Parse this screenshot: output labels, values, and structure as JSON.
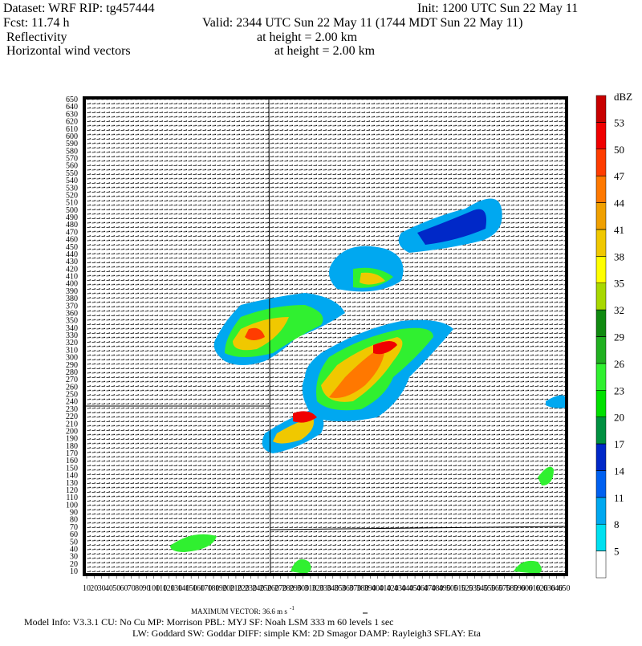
{
  "header": {
    "dataset": "Dataset: WRF  RIP: tg457444",
    "init": "Init: 1200 UTC Sun 22 May 11",
    "fcst": "Fcst:   11.74 h",
    "valid": "Valid: 2344 UTC Sun 22 May 11 (1744 MDT Sun 22 May 11)",
    "field1": "Reflectivity",
    "field1_height": "at height =  2.00 km",
    "field2": "Horizontal wind vectors",
    "field2_height": "at height =  2.00 km"
  },
  "plot": {
    "xlim": [
      10,
      650
    ],
    "ylim": [
      10,
      650
    ],
    "xticks": [
      10,
      20,
      30,
      40,
      50,
      60,
      70,
      80,
      90,
      100,
      110,
      120,
      130,
      140,
      150,
      160,
      170,
      180,
      190,
      200,
      210,
      220,
      230,
      240,
      250,
      260,
      270,
      280,
      290,
      300,
      310,
      320,
      330,
      340,
      350,
      360,
      370,
      380,
      390,
      400,
      410,
      420,
      430,
      440,
      450,
      460,
      470,
      480,
      490,
      500,
      510,
      520,
      530,
      540,
      550,
      560,
      570,
      580,
      590,
      600,
      610,
      620,
      630,
      640,
      650
    ],
    "yticks": [
      10,
      20,
      30,
      40,
      50,
      60,
      70,
      80,
      90,
      100,
      110,
      120,
      130,
      140,
      150,
      160,
      170,
      180,
      190,
      200,
      210,
      220,
      230,
      240,
      250,
      260,
      270,
      280,
      290,
      300,
      310,
      320,
      330,
      340,
      350,
      360,
      370,
      380,
      390,
      400,
      410,
      420,
      430,
      440,
      450,
      460,
      470,
      480,
      490,
      500,
      510,
      520,
      530,
      540,
      550,
      560,
      570,
      580,
      590,
      600,
      610,
      620,
      630,
      640,
      650
    ]
  },
  "colorbar": {
    "unit": "dBZ",
    "levels": [
      5,
      8,
      11,
      14,
      17,
      20,
      23,
      26,
      29,
      32,
      35,
      38,
      41,
      44,
      47,
      50,
      53
    ],
    "colors": [
      "#ffffff",
      "#00e0f0",
      "#00a8f0",
      "#0060f0",
      "#0028c8",
      "#009040",
      "#00e000",
      "#30f030",
      "#20b020",
      "#108a10",
      "#a8d800",
      "#ffff00",
      "#f0c800",
      "#f0a000",
      "#ff7800",
      "#ff3c00",
      "#f00000",
      "#c80000"
    ]
  },
  "footer": {
    "max_vector": "MAXIMUM VECTOR:  36.6 m s",
    "max_vector_exp": "-1",
    "model_info": "Model Info: V3.3.1     CU: No Cu     MP: Morrison     PBL: MYJ       SF: Noah LSM      333 m     60 levels      1 sec",
    "model_info2": "LW: Goddard SW: Goddar DIFF: simple KM: 2D Smagor DAMP: Rayleigh3   SFLAY: Eta"
  }
}
